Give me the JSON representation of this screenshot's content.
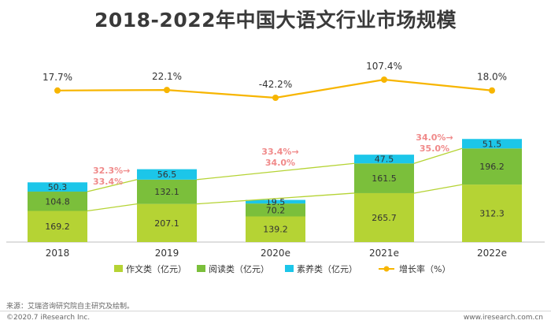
{
  "title": "2018-2022年中国大语文行业市场规模",
  "chart_data": {
    "type": "bar",
    "stacked": true,
    "categories": [
      "2018",
      "2019",
      "2020e",
      "2021e",
      "2022e"
    ],
    "series": [
      {
        "name": "作文类（亿元）",
        "values": [
          169.2,
          207.1,
          139.2,
          265.7,
          312.3
        ],
        "color": "#b5d334"
      },
      {
        "name": "阅读类（亿元）",
        "values": [
          104.8,
          132.1,
          70.2,
          161.5,
          196.2
        ],
        "color": "#7bbf3b"
      },
      {
        "name": "素养类（亿元）",
        "values": [
          50.3,
          56.5,
          19.5,
          47.5,
          51.5
        ],
        "color": "#1cc6e9"
      }
    ],
    "line_series": {
      "name": "增长率（%）",
      "values": [
        17.7,
        22.1,
        -42.2,
        107.4,
        18.0
      ],
      "labels": [
        "17.7%",
        "22.1%",
        "-42.2%",
        "107.4%",
        "18.0%"
      ],
      "color": "#f7b500"
    },
    "annotations": [
      {
        "line1": "32.3%→",
        "line2": "33.4%"
      },
      {
        "line1": "33.4%→",
        "line2": "34.0%"
      },
      {
        "line1": "34.0%→",
        "line2": "35.0%"
      }
    ],
    "annotation_color": "#f08a8a",
    "legend_position": "bottom",
    "grid": false
  },
  "footer": {
    "source": "来源：艾瑞咨询研究院自主研究及绘制。",
    "copyright": "©2020.7 iResearch Inc.",
    "site": "www.iresearch.com.cn"
  }
}
